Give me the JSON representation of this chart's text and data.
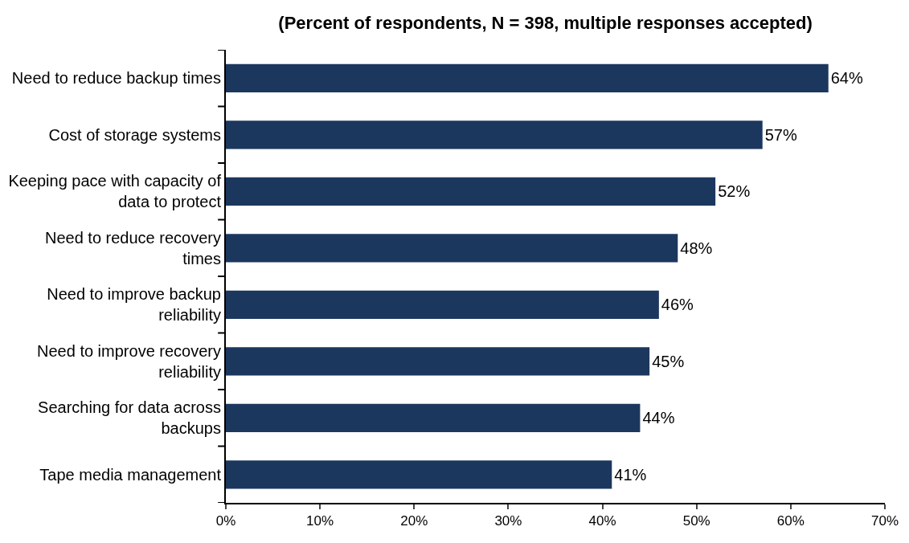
{
  "chart_data": {
    "type": "bar",
    "orientation": "horizontal",
    "title": "(Percent of respondents, N = 398, multiple responses accepted)",
    "categories": [
      "Need to reduce backup times",
      "Cost of storage systems",
      "Keeping pace with capacity of\ndata to protect",
      "Need to reduce recovery\ntimes",
      "Need to improve backup\nreliability",
      "Need to improve recovery\nreliability",
      "Searching for data across\nbackups",
      "Tape media management"
    ],
    "values": [
      64,
      57,
      52,
      48,
      46,
      45,
      44,
      41
    ],
    "value_labels": [
      "64%",
      "57%",
      "52%",
      "48%",
      "46%",
      "45%",
      "44%",
      "41%"
    ],
    "color": "#1c375e",
    "xlim": [
      0,
      70
    ],
    "xticks": [
      {
        "value": 0,
        "label": "0%"
      },
      {
        "value": 10,
        "label": "10%"
      },
      {
        "value": 20,
        "label": "20%"
      },
      {
        "value": 30,
        "label": "30%"
      },
      {
        "value": 40,
        "label": "40%"
      },
      {
        "value": 50,
        "label": "50%"
      },
      {
        "value": 60,
        "label": "60%"
      },
      {
        "value": 70,
        "label": "70%"
      }
    ],
    "legend": false
  }
}
